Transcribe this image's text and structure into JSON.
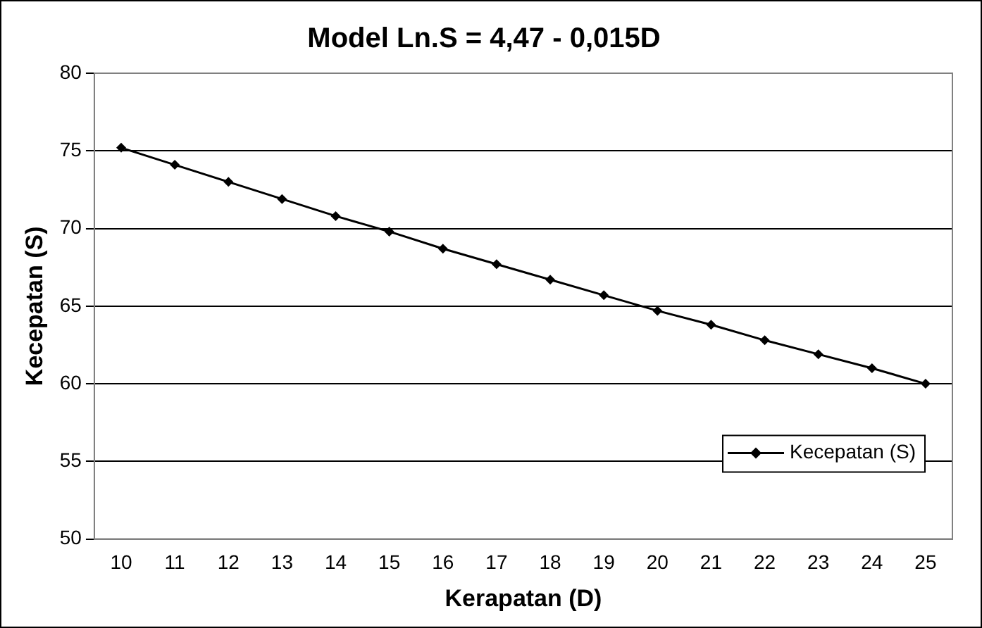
{
  "chart_data": {
    "type": "line",
    "title": "Model Ln.S = 4,47 - 0,015D",
    "xlabel": "Kerapatan (D)",
    "ylabel": "Kecepatan (S)",
    "categories": [
      "10",
      "11",
      "12",
      "13",
      "14",
      "15",
      "16",
      "17",
      "18",
      "19",
      "20",
      "21",
      "22",
      "23",
      "24",
      "25"
    ],
    "series": [
      {
        "name": "Kecepatan (S)",
        "color": "#000000",
        "values": [
          75.2,
          74.1,
          73.0,
          71.9,
          70.8,
          69.8,
          68.7,
          67.7,
          66.7,
          65.7,
          64.7,
          63.8,
          62.8,
          61.9,
          61.0,
          60.0
        ]
      }
    ],
    "ylim": [
      50,
      80
    ],
    "yticks": [
      50,
      55,
      60,
      65,
      70,
      75,
      80
    ],
    "grid": "y",
    "legend": "bottom right",
    "marker": "diamond",
    "line_style": "solid"
  }
}
